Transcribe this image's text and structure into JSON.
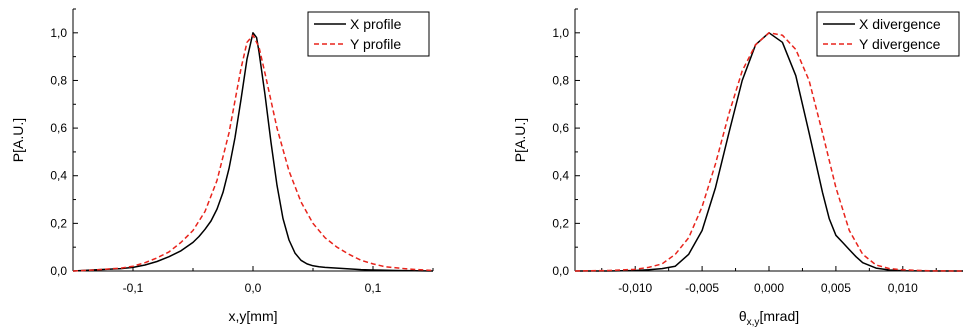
{
  "chart_data": [
    {
      "type": "line",
      "title": "",
      "xlabel": "x,y[mm]",
      "ylabel": "P[A.U.]",
      "xlim": [
        -0.15,
        0.15
      ],
      "ylim": [
        0.0,
        1.1
      ],
      "xticks": [
        -0.1,
        0.0,
        0.1
      ],
      "xtick_labels": [
        "-0,1",
        "0,0",
        "0,1"
      ],
      "yticks": [
        0.0,
        0.2,
        0.4,
        0.6,
        0.8,
        1.0
      ],
      "ytick_labels": [
        "0,0",
        "0,2",
        "0,4",
        "0,6",
        "0,8",
        "1,0"
      ],
      "grid": false,
      "legend_position": "top-right",
      "series": [
        {
          "name": "X profile",
          "color": "#000000",
          "dash": "solid",
          "x": [
            -0.15,
            -0.13,
            -0.11,
            -0.1,
            -0.09,
            -0.08,
            -0.07,
            -0.06,
            -0.05,
            -0.045,
            -0.04,
            -0.035,
            -0.03,
            -0.025,
            -0.02,
            -0.015,
            -0.01,
            -0.005,
            0.0,
            0.003,
            0.005,
            0.01,
            0.015,
            0.02,
            0.025,
            0.03,
            0.035,
            0.04,
            0.045,
            0.05,
            0.055,
            0.06,
            0.07,
            0.08,
            0.09,
            0.1,
            0.12,
            0.15
          ],
          "y": [
            0.0,
            0.005,
            0.01,
            0.015,
            0.025,
            0.04,
            0.06,
            0.085,
            0.12,
            0.145,
            0.175,
            0.21,
            0.26,
            0.33,
            0.43,
            0.56,
            0.72,
            0.89,
            1.0,
            0.98,
            0.92,
            0.74,
            0.54,
            0.36,
            0.22,
            0.13,
            0.075,
            0.045,
            0.03,
            0.022,
            0.018,
            0.015,
            0.012,
            0.009,
            0.006,
            0.004,
            0.002,
            0.0
          ]
        },
        {
          "name": "Y profile",
          "color": "#e8241c",
          "dash": "dashed",
          "x": [
            -0.15,
            -0.13,
            -0.11,
            -0.1,
            -0.09,
            -0.08,
            -0.07,
            -0.06,
            -0.05,
            -0.04,
            -0.03,
            -0.02,
            -0.01,
            -0.005,
            0.0,
            0.005,
            0.01,
            0.02,
            0.03,
            0.04,
            0.05,
            0.06,
            0.07,
            0.08,
            0.09,
            0.1,
            0.11,
            0.13,
            0.15
          ],
          "y": [
            0.0,
            0.005,
            0.012,
            0.02,
            0.035,
            0.055,
            0.08,
            0.12,
            0.17,
            0.25,
            0.38,
            0.58,
            0.85,
            0.96,
            0.99,
            0.94,
            0.83,
            0.6,
            0.42,
            0.29,
            0.2,
            0.14,
            0.1,
            0.07,
            0.045,
            0.03,
            0.018,
            0.008,
            0.002
          ]
        }
      ]
    },
    {
      "type": "line",
      "title": "",
      "xlabel": "θx,y[mrad]",
      "xlabel_main": "θ",
      "xlabel_sub": "x,y",
      "xlabel_unit": "[mrad]",
      "ylabel": "P[A.U.]",
      "xlim": [
        -0.0145,
        0.0145
      ],
      "ylim": [
        0.0,
        1.1
      ],
      "xticks": [
        -0.01,
        -0.005,
        0.0,
        0.005,
        0.01
      ],
      "xtick_labels": [
        "-0,010",
        "-0,005",
        "0,000",
        "0,005",
        "0,010"
      ],
      "yticks": [
        0.0,
        0.2,
        0.4,
        0.6,
        0.8,
        1.0
      ],
      "ytick_labels": [
        "0,0",
        "0,2",
        "0,4",
        "0,6",
        "0,8",
        "1,0"
      ],
      "grid": false,
      "legend_position": "top-right",
      "series": [
        {
          "name": "X divergence",
          "color": "#000000",
          "dash": "solid",
          "x": [
            -0.0145,
            -0.012,
            -0.01,
            -0.009,
            -0.008,
            -0.007,
            -0.006,
            -0.005,
            -0.004,
            -0.003,
            -0.002,
            -0.001,
            0.0,
            0.001,
            0.002,
            0.003,
            0.004,
            0.0045,
            0.005,
            0.0055,
            0.006,
            0.0065,
            0.007,
            0.008,
            0.009,
            0.01,
            0.012,
            0.0145
          ],
          "y": [
            0.0,
            0.0,
            0.002,
            0.005,
            0.01,
            0.02,
            0.07,
            0.17,
            0.35,
            0.58,
            0.8,
            0.95,
            1.0,
            0.96,
            0.82,
            0.58,
            0.33,
            0.22,
            0.15,
            0.12,
            0.09,
            0.06,
            0.035,
            0.012,
            0.004,
            0.001,
            0.0,
            0.0
          ]
        },
        {
          "name": "Y divergence",
          "color": "#e8241c",
          "dash": "dashed",
          "x": [
            -0.0145,
            -0.012,
            -0.01,
            -0.009,
            -0.008,
            -0.007,
            -0.006,
            -0.005,
            -0.004,
            -0.003,
            -0.002,
            -0.001,
            0.0,
            0.001,
            0.002,
            0.003,
            0.004,
            0.005,
            0.006,
            0.007,
            0.008,
            0.009,
            0.01,
            0.012,
            0.0145
          ],
          "y": [
            0.0,
            0.002,
            0.007,
            0.015,
            0.03,
            0.07,
            0.14,
            0.27,
            0.45,
            0.66,
            0.84,
            0.95,
            1.0,
            0.99,
            0.93,
            0.8,
            0.58,
            0.35,
            0.17,
            0.07,
            0.025,
            0.01,
            0.005,
            0.001,
            0.0
          ]
        }
      ]
    }
  ]
}
